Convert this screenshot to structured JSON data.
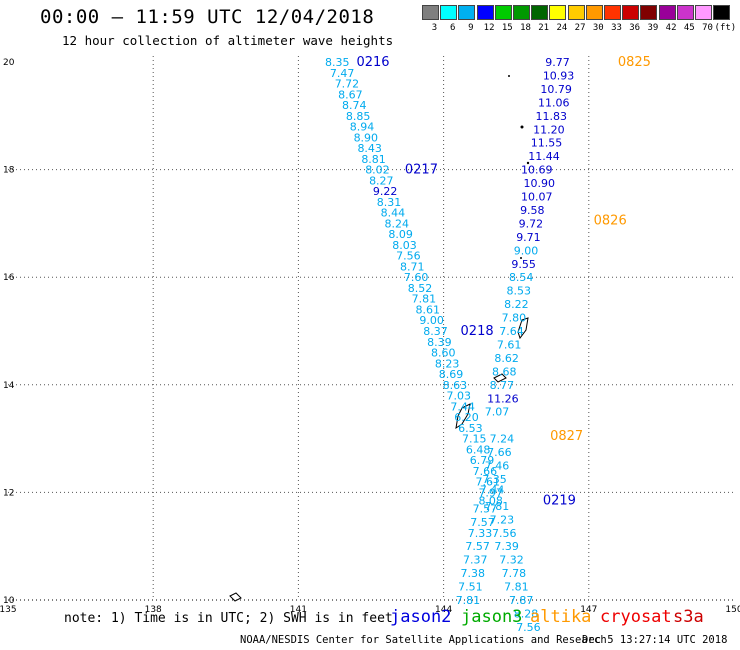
{
  "header": {
    "title": "00:00 – 11:59 UTC 12/04/2018",
    "subtitle": "12 hour collection of altimeter wave heights"
  },
  "color_scale": {
    "unit_label": "(ft)",
    "bins": [
      {
        "label": "3",
        "color": "#7f7f7f"
      },
      {
        "label": "6",
        "color": "#00ffff"
      },
      {
        "label": "9",
        "color": "#00b0f0"
      },
      {
        "label": "12",
        "color": "#0000ff"
      },
      {
        "label": "15",
        "color": "#00cc00"
      },
      {
        "label": "18",
        "color": "#009900"
      },
      {
        "label": "21",
        "color": "#006600"
      },
      {
        "label": "24",
        "color": "#ffff00"
      },
      {
        "label": "27",
        "color": "#ffcc00"
      },
      {
        "label": "30",
        "color": "#ff9900"
      },
      {
        "label": "33",
        "color": "#ff3300"
      },
      {
        "label": "36",
        "color": "#cc0000"
      },
      {
        "label": "39",
        "color": "#800000"
      },
      {
        "label": "42",
        "color": "#990099"
      },
      {
        "label": "45",
        "color": "#cc33cc"
      },
      {
        "label": "70",
        "color": "#ff99ff"
      },
      {
        "label": "",
        "color": "#000000"
      }
    ]
  },
  "footer": {
    "note": "note: 1) Time is in UTC; 2) SWH is in feet",
    "satellites": [
      {
        "name": "jason2",
        "color": "#0000dd"
      },
      {
        "name": "jason3",
        "color": "#00aa00"
      },
      {
        "name": "altika",
        "color": "#ff9900"
      },
      {
        "name": "cryosat",
        "color": "#ee0000"
      },
      {
        "name": "s3a",
        "color": "#cc0000"
      }
    ],
    "credit": "NOAA/NESDIS Center for Satellite Applications and Research",
    "timestamp": "Dec  5 13:27:14 UTC 2018"
  },
  "chart_data": {
    "type": "scatter",
    "xlim": [
      135,
      150
    ],
    "ylim": [
      10,
      20
    ],
    "x_ticks": [
      135,
      138,
      141,
      144,
      147,
      150
    ],
    "y_ticks": [
      10,
      12,
      14,
      16,
      18,
      20
    ],
    "grid": true,
    "value_colors": {
      "light": "#00aaee",
      "dark": "#0000cc",
      "orange": "#ff9900"
    },
    "passes": [
      {
        "label": "0216",
        "satellite": "jason2",
        "lon": 142.2,
        "lat": 20.0,
        "color": "#0000cc"
      },
      {
        "label": "0217",
        "satellite": "jason2",
        "lon": 143.2,
        "lat": 18.0,
        "color": "#0000cc"
      },
      {
        "label": "0218",
        "satellite": "jason2",
        "lon": 144.35,
        "lat": 15.0,
        "color": "#0000cc"
      },
      {
        "label": "0219",
        "satellite": "jason2",
        "lon": 146.05,
        "lat": 11.85,
        "color": "#0000cc"
      },
      {
        "label": "0825",
        "satellite": "altika",
        "lon": 147.6,
        "lat": 20.0,
        "color": "#ff9900"
      },
      {
        "label": "0826",
        "satellite": "altika",
        "lon": 147.1,
        "lat": 17.05,
        "color": "#ff9900"
      },
      {
        "label": "0827",
        "satellite": "altika",
        "lon": 146.2,
        "lat": 13.05,
        "color": "#ff9900"
      }
    ],
    "tracks": [
      {
        "name": "descending track (0216-0219)",
        "points": [
          {
            "lon": 141.55,
            "lat": 20.0,
            "v": "8.35",
            "c": "light"
          },
          {
            "lon": 141.65,
            "lat": 19.8,
            "v": "7.47",
            "c": "light"
          },
          {
            "lon": 141.75,
            "lat": 19.6,
            "v": "7.72",
            "c": "light"
          },
          {
            "lon": 141.82,
            "lat": 19.4,
            "v": "8.67",
            "c": "light"
          },
          {
            "lon": 141.9,
            "lat": 19.2,
            "v": "8.74",
            "c": "light"
          },
          {
            "lon": 141.98,
            "lat": 19.0,
            "v": "8.85",
            "c": "light"
          },
          {
            "lon": 142.06,
            "lat": 18.8,
            "v": "8.94",
            "c": "light"
          },
          {
            "lon": 142.14,
            "lat": 18.6,
            "v": "8.90",
            "c": "light"
          },
          {
            "lon": 142.22,
            "lat": 18.4,
            "v": "8.43",
            "c": "light"
          },
          {
            "lon": 142.3,
            "lat": 18.2,
            "v": "8.81",
            "c": "light"
          },
          {
            "lon": 142.38,
            "lat": 18.0,
            "v": "8.02",
            "c": "light"
          },
          {
            "lon": 142.46,
            "lat": 17.8,
            "v": "8.27",
            "c": "light"
          },
          {
            "lon": 142.54,
            "lat": 17.6,
            "v": "9.22",
            "c": "dark"
          },
          {
            "lon": 142.62,
            "lat": 17.4,
            "v": "8.31",
            "c": "light"
          },
          {
            "lon": 142.7,
            "lat": 17.2,
            "v": "8.44",
            "c": "light"
          },
          {
            "lon": 142.78,
            "lat": 17.0,
            "v": "8.24",
            "c": "light"
          },
          {
            "lon": 142.86,
            "lat": 16.8,
            "v": "8.09",
            "c": "light"
          },
          {
            "lon": 142.94,
            "lat": 16.6,
            "v": "8.03",
            "c": "light"
          },
          {
            "lon": 143.02,
            "lat": 16.4,
            "v": "7.56",
            "c": "light"
          },
          {
            "lon": 143.1,
            "lat": 16.2,
            "v": "8.71",
            "c": "light"
          },
          {
            "lon": 143.18,
            "lat": 16.0,
            "v": "7.60",
            "c": "light"
          },
          {
            "lon": 143.26,
            "lat": 15.8,
            "v": "8.52",
            "c": "light"
          },
          {
            "lon": 143.34,
            "lat": 15.6,
            "v": "7.81",
            "c": "light"
          },
          {
            "lon": 143.42,
            "lat": 15.4,
            "v": "8.61",
            "c": "light"
          },
          {
            "lon": 143.5,
            "lat": 15.2,
            "v": "9.00",
            "c": "light"
          },
          {
            "lon": 143.58,
            "lat": 15.0,
            "v": "8.37",
            "c": "light"
          },
          {
            "lon": 143.66,
            "lat": 14.8,
            "v": "8.39",
            "c": "light"
          },
          {
            "lon": 143.74,
            "lat": 14.6,
            "v": "8.60",
            "c": "light"
          },
          {
            "lon": 143.82,
            "lat": 14.4,
            "v": "8.23",
            "c": "light"
          },
          {
            "lon": 143.9,
            "lat": 14.2,
            "v": "8.69",
            "c": "light"
          },
          {
            "lon": 143.98,
            "lat": 14.0,
            "v": "8.63",
            "c": "light"
          },
          {
            "lon": 144.06,
            "lat": 13.8,
            "v": "7.03",
            "c": "light"
          },
          {
            "lon": 144.14,
            "lat": 13.6,
            "v": "7.44",
            "c": "light"
          },
          {
            "lon": 144.22,
            "lat": 13.4,
            "v": "6.20",
            "c": "light"
          },
          {
            "lon": 144.3,
            "lat": 13.2,
            "v": "6.53",
            "c": "light"
          },
          {
            "lon": 144.38,
            "lat": 13.0,
            "v": "7.15",
            "c": "light"
          },
          {
            "lon": 144.46,
            "lat": 12.8,
            "v": "6.48",
            "c": "light"
          },
          {
            "lon": 144.54,
            "lat": 12.6,
            "v": "6.79",
            "c": "light"
          },
          {
            "lon": 144.6,
            "lat": 12.4,
            "v": "7.66",
            "c": "light"
          },
          {
            "lon": 144.66,
            "lat": 12.2,
            "v": "7.61",
            "c": "light"
          },
          {
            "lon": 144.72,
            "lat": 12.0,
            "v": "7.97",
            "c": "light"
          },
          {
            "lon": 144.72,
            "lat": 11.85,
            "v": "8.08",
            "c": "light"
          },
          {
            "lon": 144.6,
            "lat": 11.7,
            "v": "7.57",
            "c": "light"
          },
          {
            "lon": 144.55,
            "lat": 11.45,
            "v": "7.57",
            "c": "light"
          },
          {
            "lon": 144.5,
            "lat": 11.25,
            "v": "7.33",
            "c": "light"
          },
          {
            "lon": 144.45,
            "lat": 11.0,
            "v": "7.57",
            "c": "light"
          },
          {
            "lon": 144.4,
            "lat": 10.75,
            "v": "7.37",
            "c": "light"
          },
          {
            "lon": 144.35,
            "lat": 10.5,
            "v": "7.38",
            "c": "light"
          },
          {
            "lon": 144.3,
            "lat": 10.25,
            "v": "7.51",
            "c": "light"
          },
          {
            "lon": 144.25,
            "lat": 10.0,
            "v": "7.81",
            "c": "light"
          }
        ]
      },
      {
        "name": "ascending track (0825-0827)",
        "points": [
          {
            "lon": 146.1,
            "lat": 20.0,
            "v": "9.77",
            "c": "dark"
          },
          {
            "lon": 146.05,
            "lat": 19.75,
            "v": "10.93",
            "c": "dark"
          },
          {
            "lon": 146.0,
            "lat": 19.5,
            "v": "10.79",
            "c": "dark"
          },
          {
            "lon": 145.95,
            "lat": 19.25,
            "v": "11.06",
            "c": "dark"
          },
          {
            "lon": 145.9,
            "lat": 19.0,
            "v": "11.83",
            "c": "dark"
          },
          {
            "lon": 145.85,
            "lat": 18.75,
            "v": "11.20",
            "c": "dark"
          },
          {
            "lon": 145.8,
            "lat": 18.5,
            "v": "11.55",
            "c": "dark"
          },
          {
            "lon": 145.75,
            "lat": 18.25,
            "v": "11.44",
            "c": "dark"
          },
          {
            "lon": 145.6,
            "lat": 18.0,
            "v": "10.69",
            "c": "dark"
          },
          {
            "lon": 145.65,
            "lat": 17.75,
            "v": "10.90",
            "c": "dark"
          },
          {
            "lon": 145.6,
            "lat": 17.5,
            "v": "10.07",
            "c": "dark"
          },
          {
            "lon": 145.58,
            "lat": 17.25,
            "v": "9.58",
            "c": "dark"
          },
          {
            "lon": 145.55,
            "lat": 17.0,
            "v": "9.72",
            "c": "dark"
          },
          {
            "lon": 145.5,
            "lat": 16.75,
            "v": "9.71",
            "c": "dark"
          },
          {
            "lon": 145.45,
            "lat": 16.5,
            "v": "9.00",
            "c": "light"
          },
          {
            "lon": 145.4,
            "lat": 16.25,
            "v": "9.55",
            "c": "dark"
          },
          {
            "lon": 145.35,
            "lat": 16.0,
            "v": "8.54",
            "c": "light"
          },
          {
            "lon": 145.3,
            "lat": 15.75,
            "v": "8.53",
            "c": "light"
          },
          {
            "lon": 145.25,
            "lat": 15.5,
            "v": "8.22",
            "c": "light"
          },
          {
            "lon": 145.2,
            "lat": 15.25,
            "v": "7.80",
            "c": "light"
          },
          {
            "lon": 145.15,
            "lat": 15.0,
            "v": "7.64",
            "c": "light"
          },
          {
            "lon": 145.1,
            "lat": 14.75,
            "v": "7.61",
            "c": "light"
          },
          {
            "lon": 145.05,
            "lat": 14.5,
            "v": "8.62",
            "c": "light"
          },
          {
            "lon": 145.0,
            "lat": 14.25,
            "v": "8.68",
            "c": "light"
          },
          {
            "lon": 144.95,
            "lat": 14.0,
            "v": "8.77",
            "c": "light"
          },
          {
            "lon": 144.9,
            "lat": 13.75,
            "v": "11.26",
            "c": "dark"
          },
          {
            "lon": 144.85,
            "lat": 13.5,
            "v": "7.07",
            "c": "light"
          },
          {
            "lon": 144.95,
            "lat": 13.0,
            "v": "7.24",
            "c": "light"
          },
          {
            "lon": 144.9,
            "lat": 12.75,
            "v": "7.66",
            "c": "light"
          },
          {
            "lon": 144.85,
            "lat": 12.5,
            "v": "7.46",
            "c": "light"
          },
          {
            "lon": 144.8,
            "lat": 12.25,
            "v": "7.35",
            "c": "light"
          },
          {
            "lon": 144.75,
            "lat": 12.05,
            "v": "7.44",
            "c": "light"
          },
          {
            "lon": 144.85,
            "lat": 11.75,
            "v": "7.81",
            "c": "light"
          },
          {
            "lon": 144.95,
            "lat": 11.5,
            "v": "7.23",
            "c": "light"
          },
          {
            "lon": 145.0,
            "lat": 11.25,
            "v": "7.56",
            "c": "light"
          },
          {
            "lon": 145.05,
            "lat": 11.0,
            "v": "7.39",
            "c": "light"
          },
          {
            "lon": 145.15,
            "lat": 10.75,
            "v": "7.32",
            "c": "light"
          },
          {
            "lon": 145.2,
            "lat": 10.5,
            "v": "7.78",
            "c": "light"
          },
          {
            "lon": 145.25,
            "lat": 10.25,
            "v": "7.81",
            "c": "light"
          },
          {
            "lon": 145.35,
            "lat": 10.0,
            "v": "7.87",
            "c": "light"
          },
          {
            "lon": 145.45,
            "lat": 9.75,
            "v": "8.28",
            "c": "light"
          },
          {
            "lon": 145.5,
            "lat": 9.5,
            "v": "7.56",
            "c": "light"
          }
        ]
      }
    ]
  }
}
